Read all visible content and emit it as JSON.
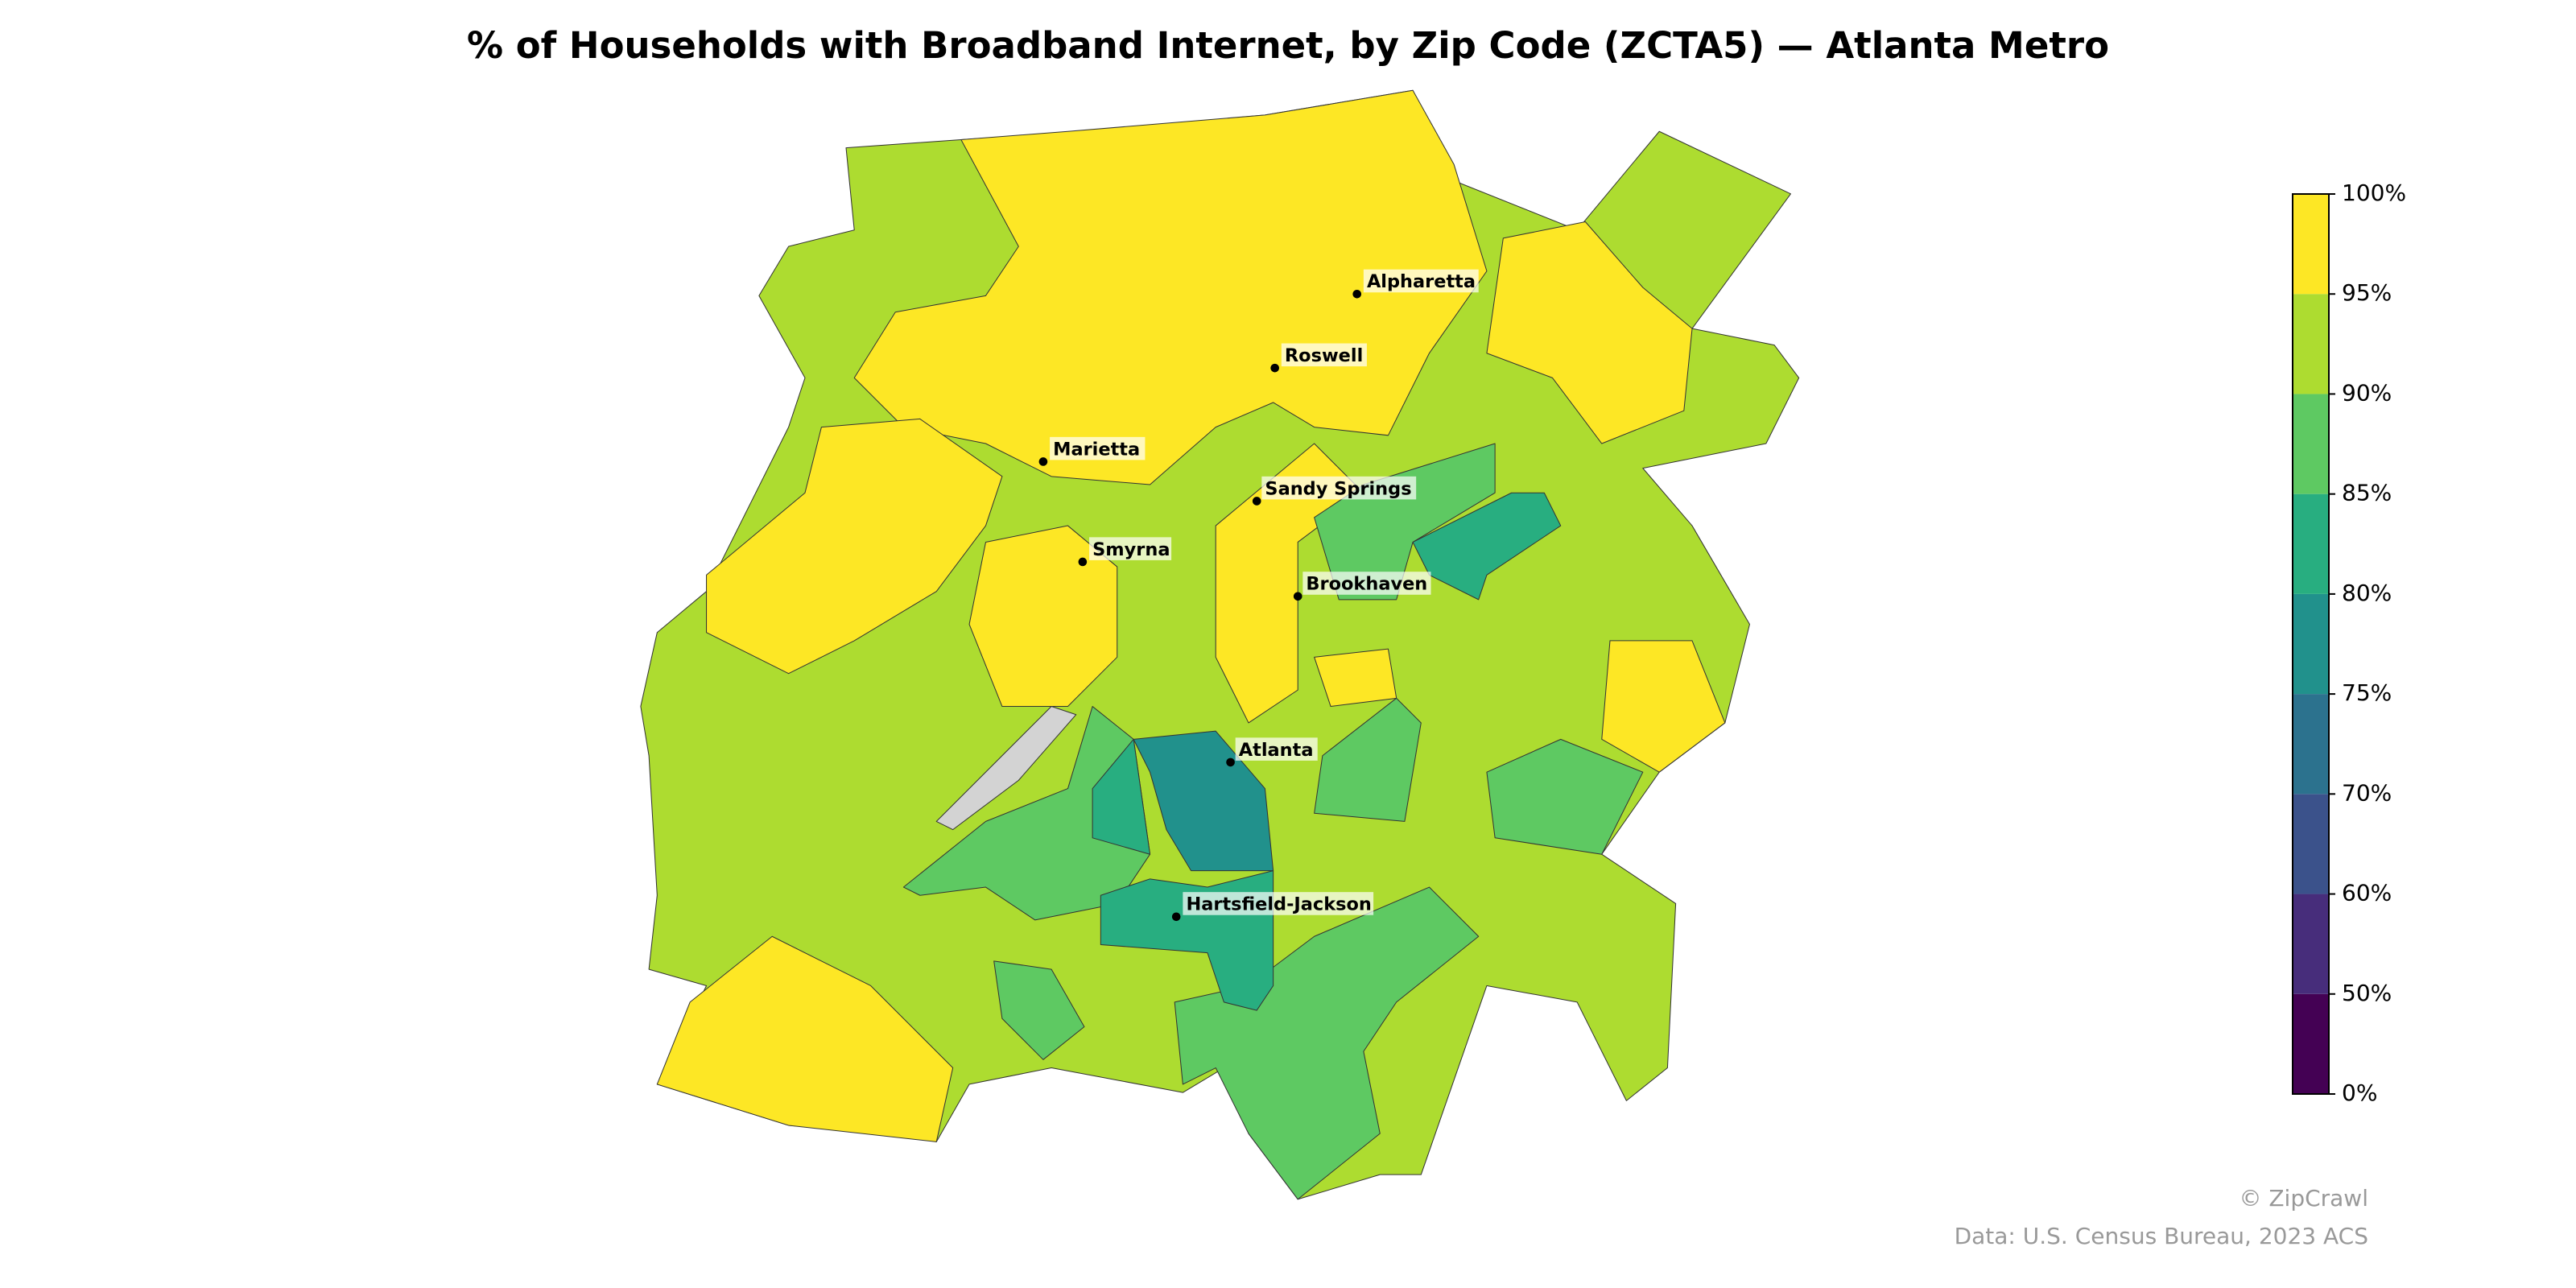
{
  "map": {
    "title": "% of Households with Broadband Internet, by Zip Code (ZCTA5) — Atlanta Metro",
    "colorbar": {
      "ticks": [
        {
          "value": 0,
          "label": "0%"
        },
        {
          "value": 50,
          "label": "50%"
        },
        {
          "value": 60,
          "label": "60%"
        },
        {
          "value": 70,
          "label": "70%"
        },
        {
          "value": 75,
          "label": "75%"
        },
        {
          "value": 80,
          "label": "80%"
        },
        {
          "value": 85,
          "label": "85%"
        },
        {
          "value": 90,
          "label": "90%"
        },
        {
          "value": 95,
          "label": "95%"
        },
        {
          "value": 100,
          "label": "100%"
        }
      ],
      "colors": [
        "#440154",
        "#472d7b",
        "#3b528b",
        "#2c728e",
        "#21918c",
        "#28ae80",
        "#5ec962",
        "#addc30",
        "#fde725"
      ]
    },
    "no_data_color": "#d3d3d3",
    "region_values": [
      92.5,
      97.5,
      97.5,
      97.5,
      97.5,
      97.5,
      97.5,
      97.5,
      97.5,
      87.5,
      87.5,
      87.5,
      87.5,
      87.5,
      87.5,
      82.5,
      82.5,
      82.5,
      77.5,
      null
    ],
    "cities": [
      "Alpharetta",
      "Roswell",
      "Marietta",
      "Sandy Springs",
      "Smyrna",
      "Brookhaven",
      "Atlanta",
      "Hartsfield-Jackson"
    ],
    "credit": "© ZipCrawl",
    "source": "Data: U.S. Census Bureau, 2023 ACS"
  }
}
